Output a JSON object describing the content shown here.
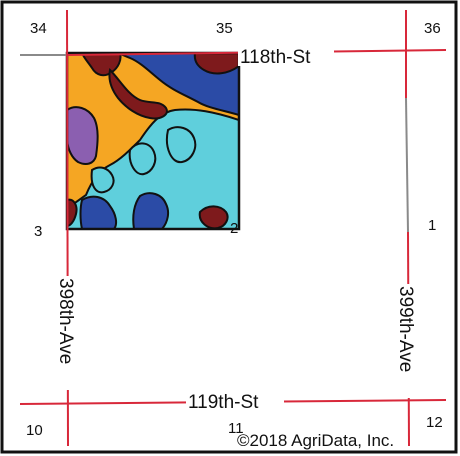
{
  "map": {
    "sections": {
      "nw": "34",
      "n": "35",
      "ne": "36",
      "w": "3",
      "field_corner": "2",
      "e": "1",
      "sw": "10",
      "s": "11",
      "se": "12"
    },
    "roads": {
      "north": "118th-St",
      "south": "119th-St",
      "west": "398th-Ave",
      "east": "399th-Ave"
    },
    "copyright": "©2018 AgriData, Inc.",
    "colors": {
      "road": "#d8283a",
      "grey_road": "#8a8a8a",
      "border": "#111111",
      "soil_navy": "#2b4ba6",
      "soil_maroon": "#7e1a1c",
      "soil_orange": "#f5a623",
      "soil_cyan": "#5fcfdc",
      "soil_purple": "#8b5fb0"
    }
  }
}
